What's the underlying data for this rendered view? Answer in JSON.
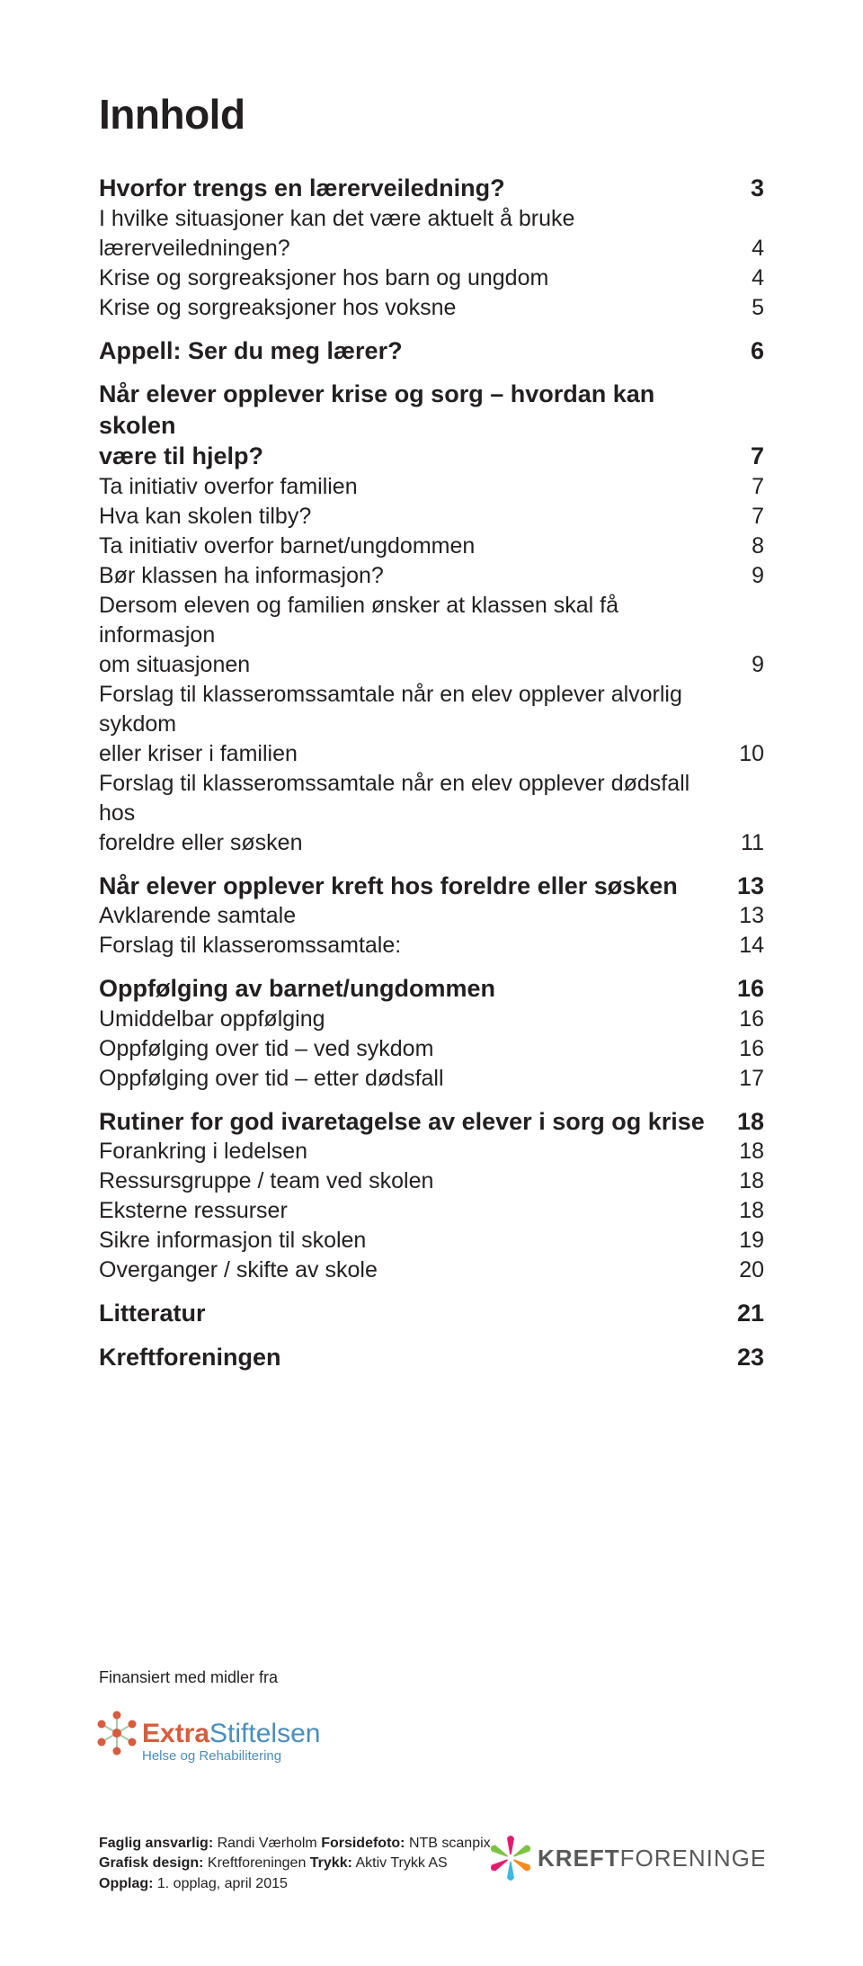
{
  "title": "Innhold",
  "toc": [
    {
      "type": "h1",
      "label": "Hvorfor trengs en lærerveiledning?",
      "page": "3"
    },
    {
      "type": "sub",
      "label": "I hvilke situasjoner kan det være aktuelt å bruke lærerveiledningen?",
      "page": "4"
    },
    {
      "type": "sub",
      "label": "Krise og sorgreaksjoner hos barn og ungdom",
      "page": "4"
    },
    {
      "type": "sub",
      "label": "Krise og sorgreaksjoner hos voksne",
      "page": "5"
    },
    {
      "type": "h1",
      "label": "Appell: Ser du meg lærer?",
      "page": "6"
    },
    {
      "type": "h1",
      "label": "Når elever opplever krise og sorg – hvordan kan skolen",
      "label2": "være til hjelp?",
      "page": "7"
    },
    {
      "type": "sub",
      "label": "Ta initiativ overfor familien",
      "page": "7"
    },
    {
      "type": "sub",
      "label": "Hva kan skolen tilby?",
      "page": "7"
    },
    {
      "type": "sub",
      "label": "Ta initiativ overfor barnet/ungdommen",
      "page": "8"
    },
    {
      "type": "sub",
      "label": "Bør klassen ha informasjon?",
      "page": "9"
    },
    {
      "type": "sub",
      "label": "Dersom eleven og familien ønsker at klassen skal få informasjon",
      "label2": "om situasjonen",
      "page": "9"
    },
    {
      "type": "sub",
      "label": "Forslag til klasseromssamtale når en elev opplever alvorlig sykdom",
      "label2": "eller kriser i familien",
      "page": "10"
    },
    {
      "type": "sub",
      "label": "Forslag til klasseromssamtale når en elev opplever dødsfall hos",
      "label2": "foreldre eller søsken",
      "page": "11"
    },
    {
      "type": "h1",
      "label": "Når elever opplever kreft hos foreldre eller søsken",
      "page": "13"
    },
    {
      "type": "sub",
      "label": "Avklarende samtale",
      "page": "13"
    },
    {
      "type": "sub",
      "label": "Forslag til klasseromssamtale:",
      "page": "14"
    },
    {
      "type": "h1",
      "label": "Oppfølging av barnet/ungdommen",
      "page": "16"
    },
    {
      "type": "sub",
      "label": "Umiddelbar oppfølging",
      "page": "16"
    },
    {
      "type": "sub",
      "label": "Oppfølging over tid – ved sykdom",
      "page": "16"
    },
    {
      "type": "sub",
      "label": "Oppfølging over tid – etter dødsfall",
      "page": "17"
    },
    {
      "type": "h1",
      "label": "Rutiner for god ivaretagelse av elever i sorg og krise",
      "page": "18"
    },
    {
      "type": "sub",
      "label": "Forankring i ledelsen",
      "page": "18"
    },
    {
      "type": "sub",
      "label": "Ressursgruppe / team ved skolen",
      "page": "18"
    },
    {
      "type": "sub",
      "label": "Eksterne ressurser",
      "page": "18"
    },
    {
      "type": "sub",
      "label": "Sikre informasjon til skolen",
      "page": "19"
    },
    {
      "type": "sub",
      "label": "Overganger / skifte av skole",
      "page": "20"
    },
    {
      "type": "h1",
      "label": "Litteratur",
      "page": "21"
    },
    {
      "type": "h1",
      "label": "Kreftforeningen",
      "page": "23"
    }
  ],
  "financed_label": "Finansiert med midler fra",
  "extra_logo": {
    "word1": "Extra",
    "word1_color": "#d85c3e",
    "word2": "Stiftelsen",
    "word2_color": "#4a8dbb",
    "tagline": "Helse og Rehabilitering",
    "dot_color": "#d85c3e",
    "line_color": "#a7c9a8"
  },
  "credits": {
    "l1_b1": "Faglig ansvarlig:",
    "l1_t1": " Randi Værholm  ",
    "l1_b2": "Forsidefoto:",
    "l1_t2": " NTB scanpix",
    "l2_b1": "Grafisk design:",
    "l2_t1": " Kreftforeningen  ",
    "l2_b2": "Trykk:",
    "l2_t2": " Aktiv Trykk AS",
    "l3_b1": "Opplag:",
    "l3_t1": " 1. opplag, april 2015"
  },
  "kf_logo": {
    "word1": "KREFT",
    "word2": "FORENINGEN",
    "petal_colors": [
      "#e31b6d",
      "#7cc243",
      "#f68b1f",
      "#3bb9e3",
      "#e31b6d",
      "#7cc243"
    ],
    "center_color": "#ffffff"
  },
  "colors": {
    "text": "#231f20",
    "background": "#ffffff"
  },
  "typography": {
    "title_fontsize": 46,
    "h1_fontsize": 27,
    "sub_fontsize": 25,
    "credits_fontsize": 16,
    "financed_fontsize": 18
  }
}
